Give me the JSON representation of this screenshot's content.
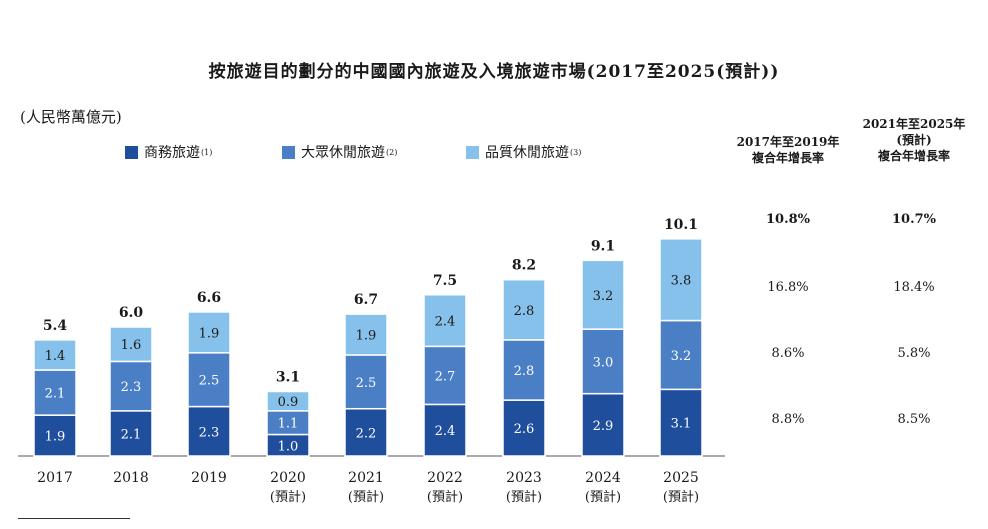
{
  "title": "按旅遊目的劃分的中國國內旅遊及入境旅遊市場(2017至2025(預計))",
  "unit": "(人民幣萬億元)",
  "legend": [
    {
      "label": "商務旅遊",
      "note": "(1)",
      "color": "#1f4e9c"
    },
    {
      "label": "大眾休閒旅遊",
      "note": "(2)",
      "color": "#4a7fc6"
    },
    {
      "label": "品質休閒旅遊",
      "note": "(3)",
      "color": "#85c1ea"
    }
  ],
  "cagr": {
    "header_1": [
      "2017年至2019年",
      "複合年增長率"
    ],
    "header_2": [
      "2021年至2025年",
      "(預計)",
      "複合年增長率"
    ],
    "total": [
      "10.8%",
      "10.7%"
    ],
    "quality": [
      "16.8%",
      "18.4%"
    ],
    "mass": [
      "8.6%",
      "5.8%"
    ],
    "business": [
      "8.8%",
      "8.5%"
    ]
  },
  "chart_data": {
    "type": "bar",
    "stacked": true,
    "categories": [
      "2017",
      "2018",
      "2019",
      "2020",
      "2021",
      "2022",
      "2023",
      "2024",
      "2025"
    ],
    "category_notes": [
      "",
      "",
      "",
      "(預計)",
      "(預計)",
      "(預計)",
      "(預計)",
      "(預計)",
      "(預計)"
    ],
    "series": [
      {
        "name": "商務旅遊",
        "color": "#1f4e9c",
        "values": [
          1.9,
          2.1,
          2.3,
          1.0,
          2.2,
          2.4,
          2.6,
          2.9,
          3.1
        ]
      },
      {
        "name": "大眾休閒旅遊",
        "color": "#4a7fc6",
        "values": [
          2.1,
          2.3,
          2.5,
          1.1,
          2.5,
          2.7,
          2.8,
          3.0,
          3.2
        ]
      },
      {
        "name": "品質休閒旅遊",
        "color": "#85c1ea",
        "values": [
          1.4,
          1.6,
          1.9,
          0.9,
          1.9,
          2.4,
          2.8,
          3.2,
          3.8
        ]
      }
    ],
    "totals": [
      "5.4",
      "6.0",
      "6.6",
      "3.1",
      "6.7",
      "7.5",
      "8.2",
      "9.1",
      "10.1"
    ],
    "ylim": [
      0,
      10.1
    ],
    "grid": false
  }
}
